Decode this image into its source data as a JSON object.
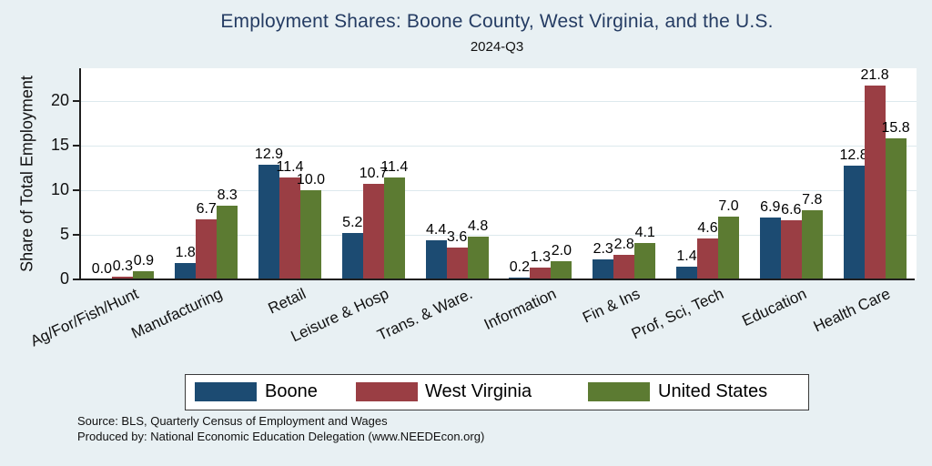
{
  "chart_data": {
    "type": "bar",
    "title": "Employment Shares: Boone County, West Virginia, and the U.S.",
    "subtitle": "2024-Q3",
    "ylabel": "Share of Total Employment",
    "xlabel": "",
    "categories": [
      "Ag/For/Fish/Hunt",
      "Manufacturing",
      "Retail",
      "Leisure & Hosp",
      "Trans. & Ware.",
      "Information",
      "Fin & Ins",
      "Prof, Sci, Tech",
      "Education",
      "Health Care"
    ],
    "series": [
      {
        "name": "Boone",
        "color": "#1c4b72",
        "values": [
          0.0,
          1.8,
          12.9,
          5.2,
          4.4,
          0.2,
          2.3,
          1.4,
          6.9,
          12.8
        ]
      },
      {
        "name": "West Virginia",
        "color": "#9a3e44",
        "values": [
          0.3,
          6.7,
          11.4,
          10.7,
          3.6,
          1.3,
          2.8,
          4.6,
          6.6,
          21.8
        ]
      },
      {
        "name": "United States",
        "color": "#5c7b32",
        "values": [
          0.9,
          8.3,
          10.0,
          11.4,
          4.8,
          2.0,
          4.1,
          7.0,
          7.8,
          15.8
        ]
      }
    ],
    "yticks": [
      0,
      5,
      10,
      15,
      20
    ],
    "ylim": [
      0,
      23.7
    ],
    "grid": true,
    "value_labels": true,
    "legend_position": "bottom",
    "colors": {
      "background": "#e8f0f3",
      "plot_background": "#ffffff",
      "gridline": "#dde9ed",
      "axis": "#1f1f1f",
      "title": "#253c63"
    }
  },
  "footer": {
    "line1": "Source: BLS, Quarterly Census of Employment and Wages",
    "line2": "Produced by: National Economic Education Delegation (www.NEEDEcon.org)"
  }
}
